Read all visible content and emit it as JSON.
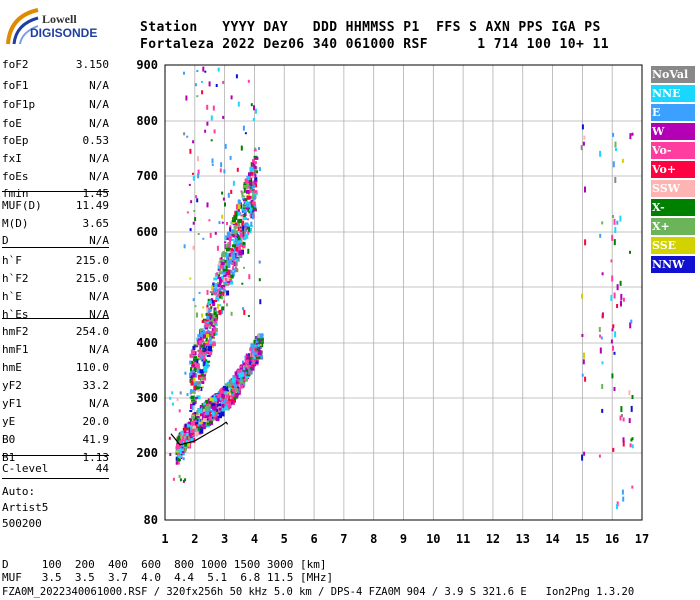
{
  "logo": {
    "line1": "Lowell",
    "line2": "DIGISONDE"
  },
  "header": {
    "line1": "Station   YYYY DAY   DDD HHMMSS P1  FFS S AXN PPS IGA PS",
    "line2": "Fortaleza 2022 Dez06 340 061000 RSF      1 714 100 10+ 11"
  },
  "parameters": [
    {
      "name": "foF2",
      "value": "3.150"
    },
    {
      "name": "foF1",
      "value": "N/A"
    },
    {
      "name": "foF1p",
      "value": "N/A"
    },
    {
      "name": "foE",
      "value": "N/A"
    },
    {
      "name": "foEp",
      "value": "0.53"
    },
    {
      "name": "fxI",
      "value": "N/A"
    },
    {
      "name": "foEs",
      "value": "N/A"
    },
    {
      "name": "fmin",
      "value": "1.45"
    },
    {
      "name": "MUF(D)",
      "value": "11.49"
    },
    {
      "name": "M(D)",
      "value": "3.65"
    },
    {
      "name": "D",
      "value": "N/A"
    },
    {
      "name": "h`F",
      "value": "215.0"
    },
    {
      "name": "h`F2",
      "value": "215.0"
    },
    {
      "name": "h`E",
      "value": "N/A"
    },
    {
      "name": "h`Es",
      "value": "N/A"
    },
    {
      "name": "hmF2",
      "value": "254.0"
    },
    {
      "name": "hmF1",
      "value": "N/A"
    },
    {
      "name": "hmE",
      "value": "110.0"
    },
    {
      "name": "yF2",
      "value": "33.2"
    },
    {
      "name": "yF1",
      "value": "N/A"
    },
    {
      "name": "yE",
      "value": "20.0"
    },
    {
      "name": "B0",
      "value": "41.9"
    },
    {
      "name": "B1",
      "value": "1.13"
    },
    {
      "name": "C-level",
      "value": "44"
    }
  ],
  "autoscaling": {
    "line1": "Auto:",
    "line2": "Artist5",
    "line3": "500200"
  },
  "legend": [
    {
      "label": "NoVal",
      "color": "#888888"
    },
    {
      "label": "NNE",
      "color": "#19d7ff"
    },
    {
      "label": "E",
      "color": "#3ca0ff"
    },
    {
      "label": "W",
      "color": "#b400b4"
    },
    {
      "label": "Vo-",
      "color": "#ff3ca0"
    },
    {
      "label": "Vo+",
      "color": "#ff0040"
    },
    {
      "label": "SSW",
      "color": "#ffb4b4"
    },
    {
      "label": "X-",
      "color": "#008000"
    },
    {
      "label": "X+",
      "color": "#6cb45a"
    },
    {
      "label": "SSE",
      "color": "#d2d200"
    },
    {
      "label": "NNW",
      "color": "#1010d0"
    }
  ],
  "footer": {
    "distance_row": "D     100  200  400  600  800 1000 1500 3000 [km]",
    "muf_row": "MUF   3.5  3.5  3.7  4.0  4.4  5.1  6.8 11.5 [MHz]",
    "info_row": "FZA0M_2022340061000.RSF / 320fx256h 50 kHz 5.0 km / DPS-4 FZA0M 904 / 3.9 S 321.6 E   Ion2Png 1.3.20"
  },
  "chart_data": {
    "type": "scatter",
    "xlim": [
      1,
      17
    ],
    "ylim": [
      80,
      900
    ],
    "x_ticks": [
      1,
      2,
      3,
      4,
      5,
      6,
      7,
      8,
      9,
      10,
      11,
      12,
      13,
      14,
      15,
      16,
      17
    ],
    "y_ticks": [
      80,
      200,
      300,
      400,
      500,
      600,
      700,
      800,
      900
    ],
    "grid": true,
    "legend_position": "right",
    "profile_curve": [
      [
        1.2,
        235
      ],
      [
        1.5,
        215
      ],
      [
        2.0,
        222
      ],
      [
        2.5,
        238
      ],
      [
        2.9,
        250
      ],
      [
        3.05,
        256
      ],
      [
        3.1,
        252
      ]
    ],
    "echo_ridges": [
      {
        "x": [
          1.35,
          1.6,
          1.9,
          2.2,
          2.5,
          2.8,
          3.0,
          3.2,
          3.4,
          3.6,
          3.8,
          4.0,
          4.2
        ],
        "y": [
          205,
          228,
          250,
          268,
          282,
          292,
          305,
          315,
          332,
          348,
          370,
          390,
          400
        ]
      },
      {
        "x": [
          1.8,
          2.0,
          2.2,
          2.4,
          2.6,
          2.8,
          3.0,
          3.2,
          3.4,
          3.6,
          3.8,
          4.0
        ],
        "y": [
          330,
          350,
          380,
          420,
          460,
          500,
          540,
          570,
          600,
          630,
          660,
          700
        ]
      }
    ],
    "right_band_x": [
      15.0,
      15.6,
      16.0,
      16.1,
      16.3,
      16.6
    ]
  }
}
